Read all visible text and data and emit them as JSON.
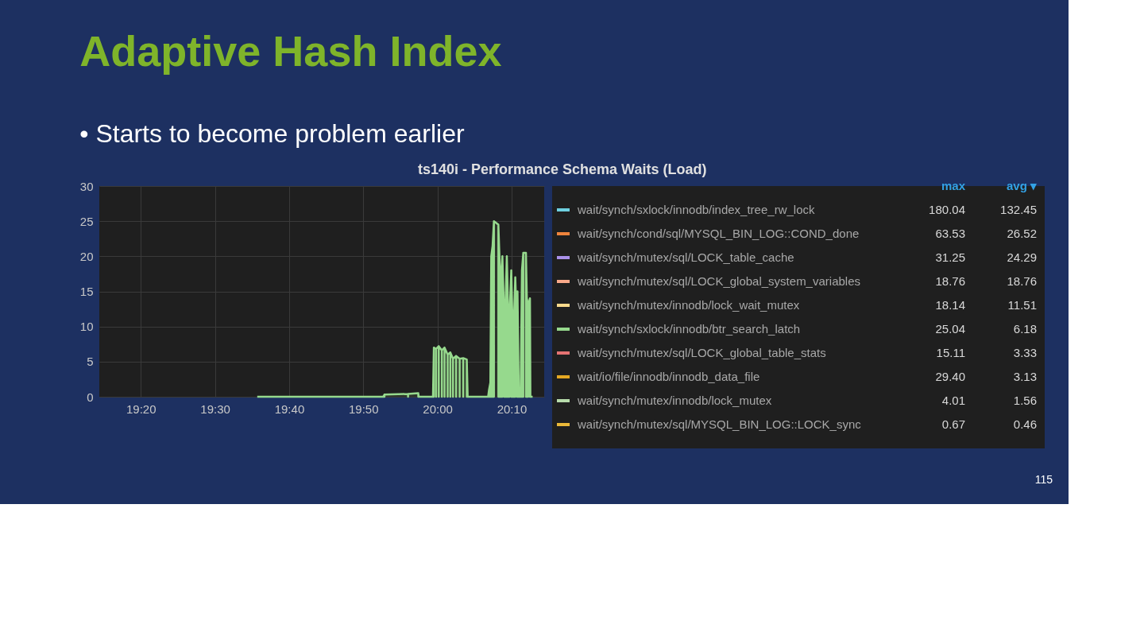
{
  "chart_data": {
    "type": "area",
    "title": "Adaptive Hash Index",
    "subtitle": "•   Starts to become problem earlier",
    "annotations": [
      "ts140i - Performance Schema Waits (Load)",
      "max",
      "avg ▾",
      "180.04",
      "132.45",
      "63.53",
      "26.52",
      "31.25",
      "24.29",
      "18.76",
      "18.76",
      "18.14",
      "11.51",
      "25.04",
      "6.18",
      "15.11",
      "3.33",
      "29.40",
      "3.13",
      "4.01",
      "1.56",
      "0.67",
      "0.46",
      "115"
    ],
    "xlim": [
      19.24,
      20.24
    ],
    "ylim": [
      0,
      30
    ],
    "yticks": [
      0,
      5,
      10,
      15,
      20,
      25,
      30
    ],
    "xticks": [
      {
        "value": 19.3333,
        "label": "19:20"
      },
      {
        "value": 19.5,
        "label": "19:30"
      },
      {
        "value": 19.6667,
        "label": "19:40"
      },
      {
        "value": 19.8333,
        "label": "19:50"
      },
      {
        "value": 20.0,
        "label": "20:00"
      },
      {
        "value": 20.1667,
        "label": "20:10"
      }
    ],
    "grid": true,
    "legend": "right",
    "series": [
      {
        "name": "wait/synch/sxlock/innodb/index_tree_rw_lock",
        "color": "#6ed0e0"
      },
      {
        "name": "wait/synch/cond/sql/MYSQL_BIN_LOG::COND_done",
        "color": "#ef843c"
      },
      {
        "name": "wait/synch/mutex/sql/LOCK_table_cache",
        "color": "#a990e8"
      },
      {
        "name": "wait/synch/mutex/sql/LOCK_global_system_variables",
        "color": "#f9a98a"
      },
      {
        "name": "wait/synch/mutex/innodb/lock_wait_mutex",
        "color": "#f9d98c"
      },
      {
        "name": "wait/synch/sxlock/innodb/btr_search_latch",
        "color": "#96d98d",
        "x": [
          19.595,
          19.878,
          19.881,
          19.934,
          19.957,
          19.958,
          19.99,
          19.992,
          19.997,
          20.003,
          20.01,
          20.016,
          20.023,
          20.029,
          20.035,
          20.042,
          20.05,
          20.058,
          20.066,
          20.068,
          20.114,
          20.116,
          20.119,
          20.121,
          20.124,
          20.127,
          20.137,
          20.14,
          20.143,
          20.146,
          20.15,
          20.153,
          20.156,
          20.159,
          20.162,
          20.166,
          20.169,
          20.172,
          20.175,
          20.179,
          20.18,
          20.183,
          20.187,
          20.19,
          20.193,
          20.199,
          20.201,
          20.204,
          20.208,
          20.209,
          20.214
        ],
        "values": [
          0,
          0,
          0.3,
          0.4,
          0.5,
          0,
          0,
          7,
          6.8,
          7.2,
          6.6,
          7.0,
          6.0,
          6.3,
          5.4,
          5.8,
          5.4,
          5.5,
          5.3,
          0,
          0,
          1,
          2,
          20,
          21.5,
          25,
          24.5,
          19,
          16,
          20,
          11.5,
          13,
          20,
          12,
          11.5,
          18,
          10,
          11,
          17,
          9,
          15,
          0,
          0,
          18,
          20.5,
          20.5,
          14,
          13,
          14,
          0,
          0
        ]
      },
      {
        "name": "wait/synch/mutex/sql/LOCK_global_table_stats",
        "color": "#e57373"
      },
      {
        "name": "wait/io/file/innodb/innodb_data_file",
        "color": "#e5a823"
      },
      {
        "name": "wait/synch/mutex/innodb/lock_mutex",
        "color": "#b7dbab"
      },
      {
        "name": "wait/synch/mutex/sql/MYSQL_BIN_LOG::LOCK_sync",
        "color": "#eab839"
      }
    ]
  }
}
